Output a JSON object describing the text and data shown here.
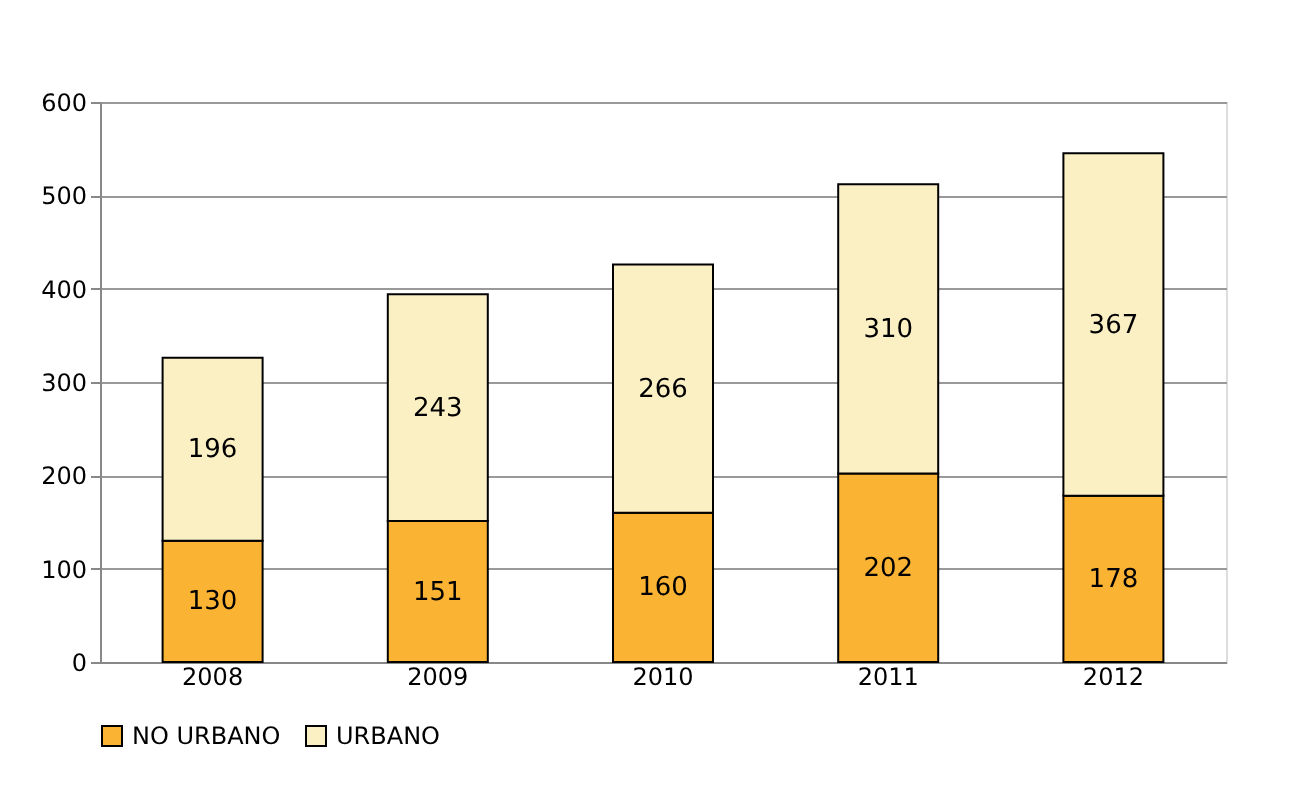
{
  "chart_data": {
    "type": "bar",
    "stacked": true,
    "categories": [
      "2008",
      "2009",
      "2010",
      "2011",
      "2012"
    ],
    "series": [
      {
        "name": "NO URBANO",
        "color": "#fbb334",
        "values": [
          130,
          151,
          160,
          202,
          178
        ]
      },
      {
        "name": "URBANO",
        "color": "#fbefc4",
        "values": [
          196,
          243,
          266,
          310,
          367
        ]
      }
    ],
    "ylim": [
      0,
      600
    ],
    "yticks": [
      0,
      100,
      200,
      300,
      400,
      500,
      600
    ],
    "grid": "y",
    "legend": "bottom",
    "data_labels": true
  }
}
